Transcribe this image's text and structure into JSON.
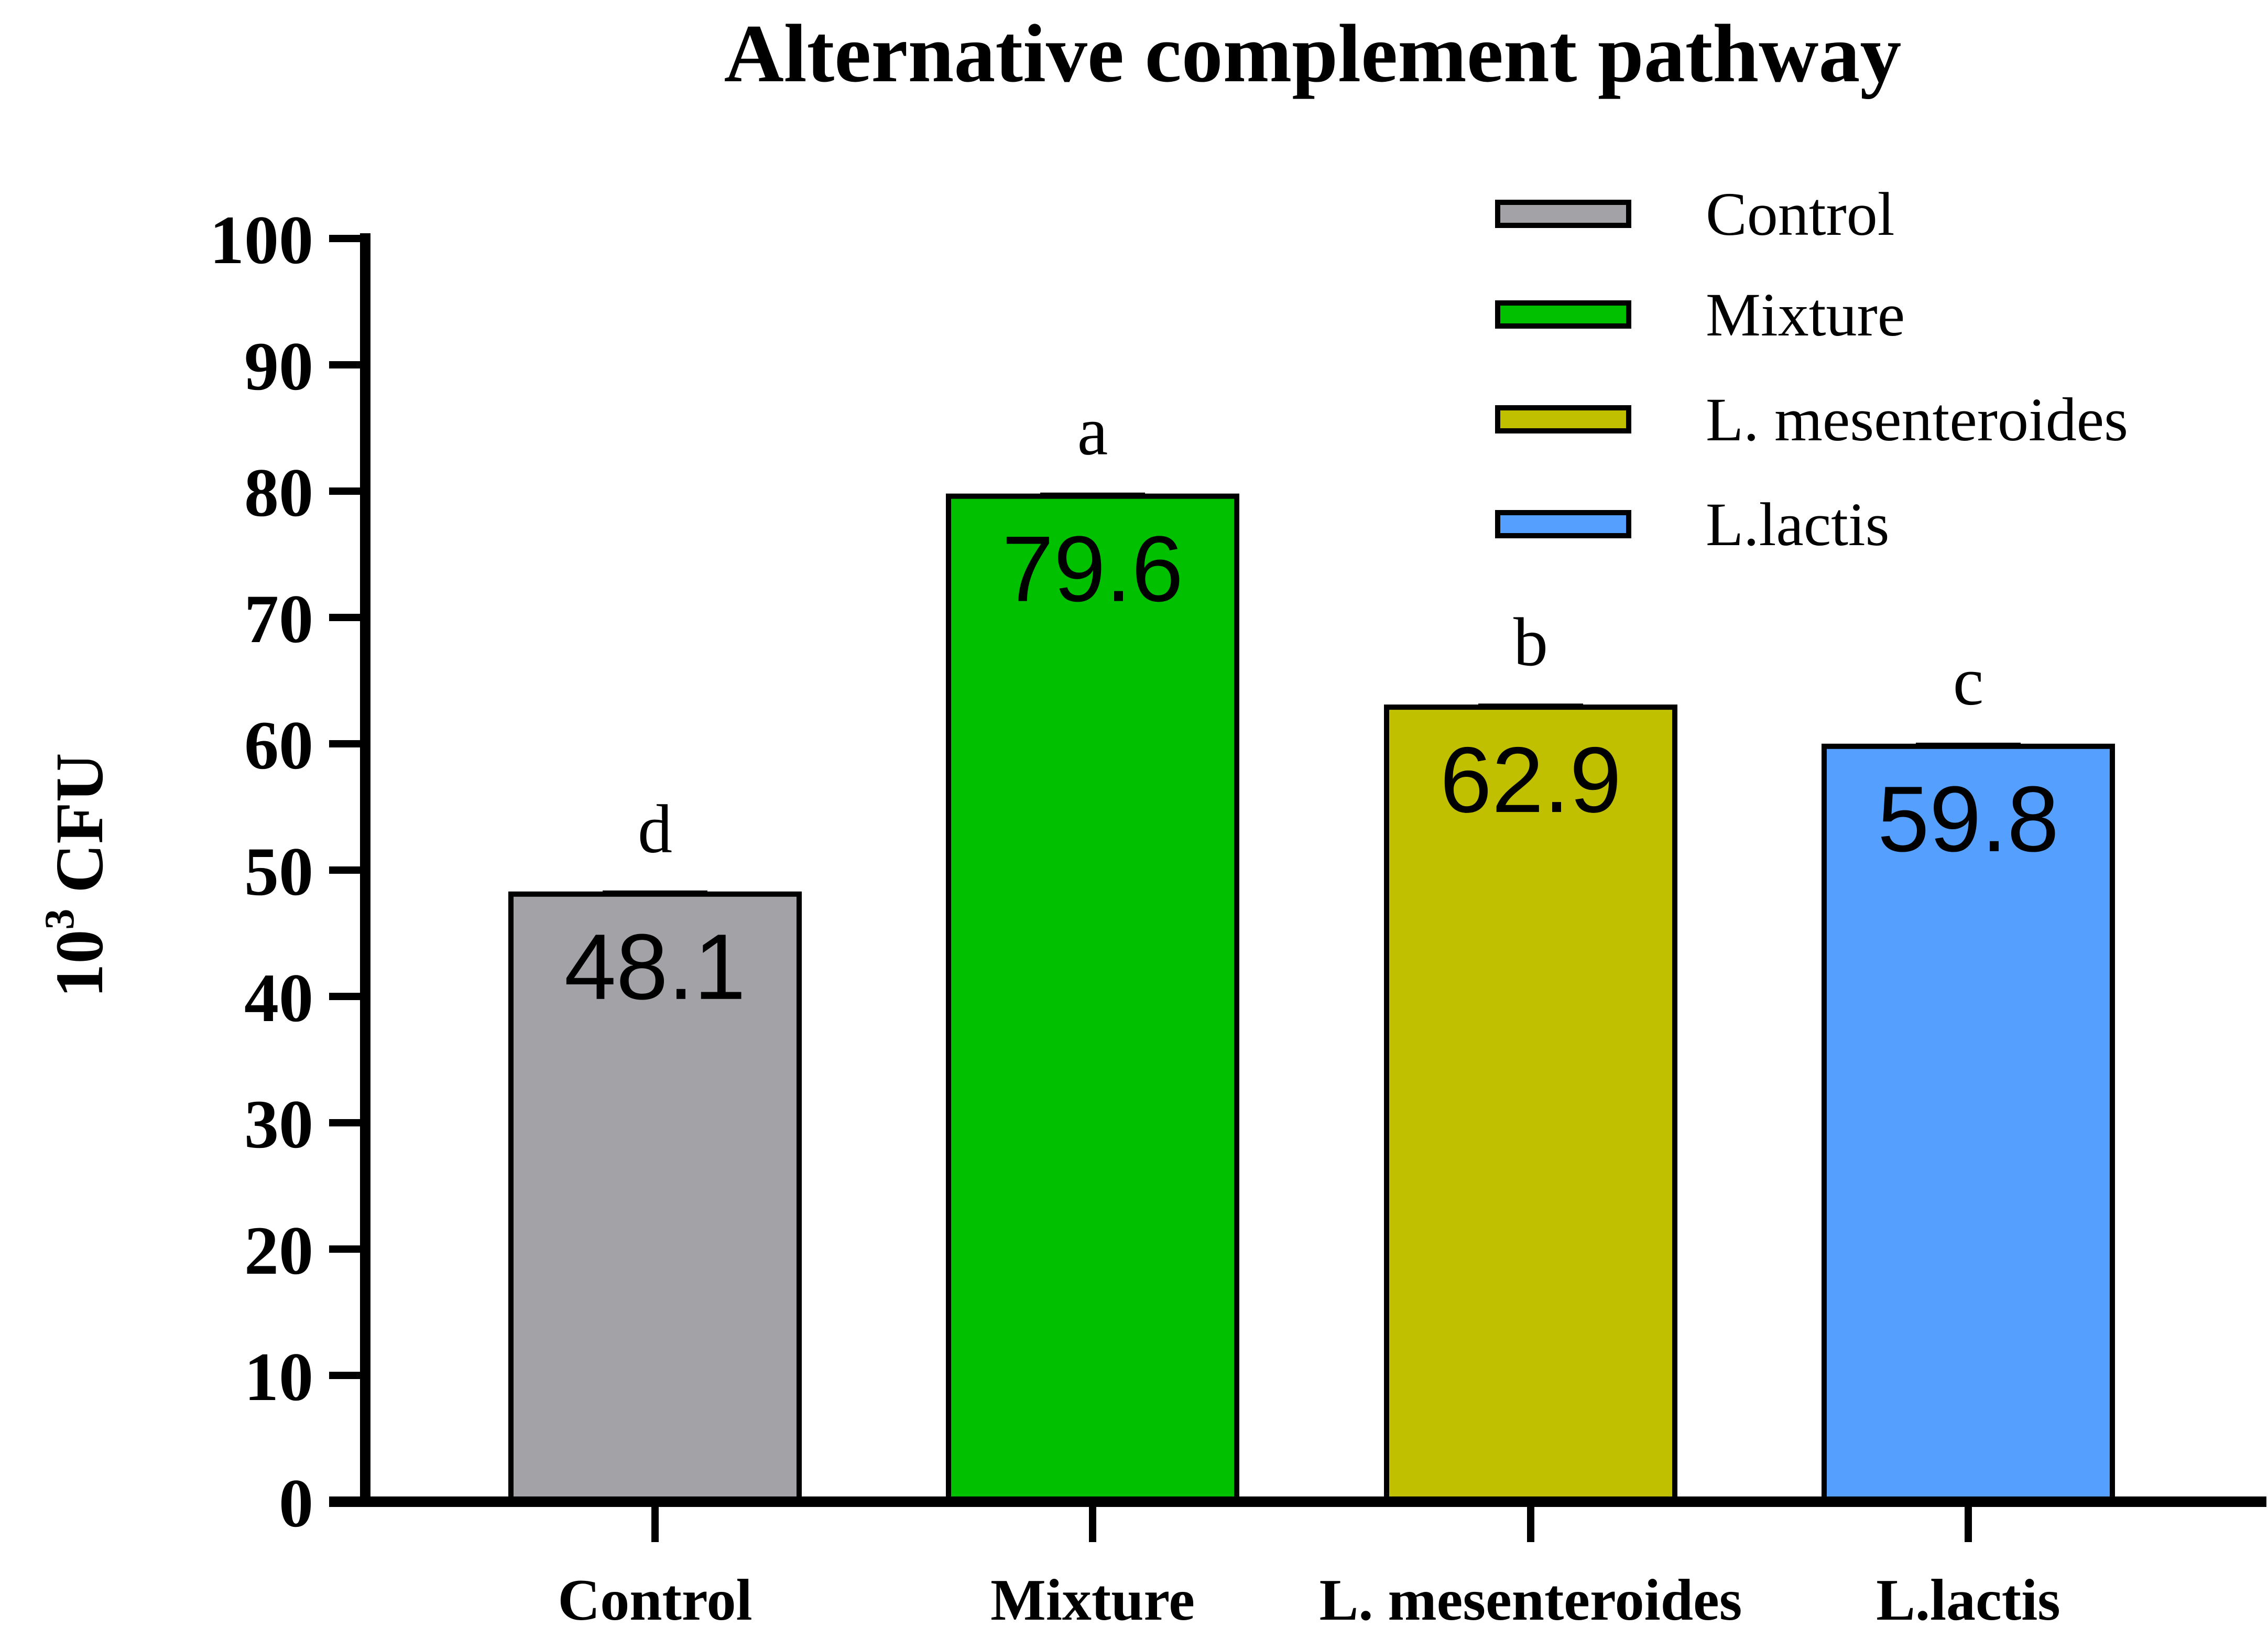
{
  "chart_data": {
    "type": "bar",
    "title": "Alternative complement pathway",
    "ylabel_base": "10",
    "ylabel_exponent": "3",
    "ylabel_unit": "CFU",
    "xlabel": "",
    "ylim": [
      0,
      100
    ],
    "yticks": [
      "0",
      "10",
      "20",
      "30",
      "40",
      "50",
      "60",
      "70",
      "80",
      "90",
      "100"
    ],
    "categories": [
      "Control",
      "Mixture",
      "L. mesenteroides",
      "L.lactis"
    ],
    "values": [
      48.1,
      79.6,
      62.9,
      59.8
    ],
    "value_labels": [
      "48.1",
      "79.6",
      "62.9",
      "59.8"
    ],
    "significance_letters": [
      "d",
      "a",
      "b",
      "c"
    ],
    "error": [
      0.1,
      0.1,
      0.1,
      0.1
    ],
    "colors": [
      "#a3a2a7",
      "#00c000",
      "#c0c000",
      "#55a0ff"
    ],
    "legend": {
      "position": "top-right",
      "entries": [
        "Control",
        "Mixture",
        "L. mesenteroides",
        "L.lactis"
      ]
    }
  }
}
